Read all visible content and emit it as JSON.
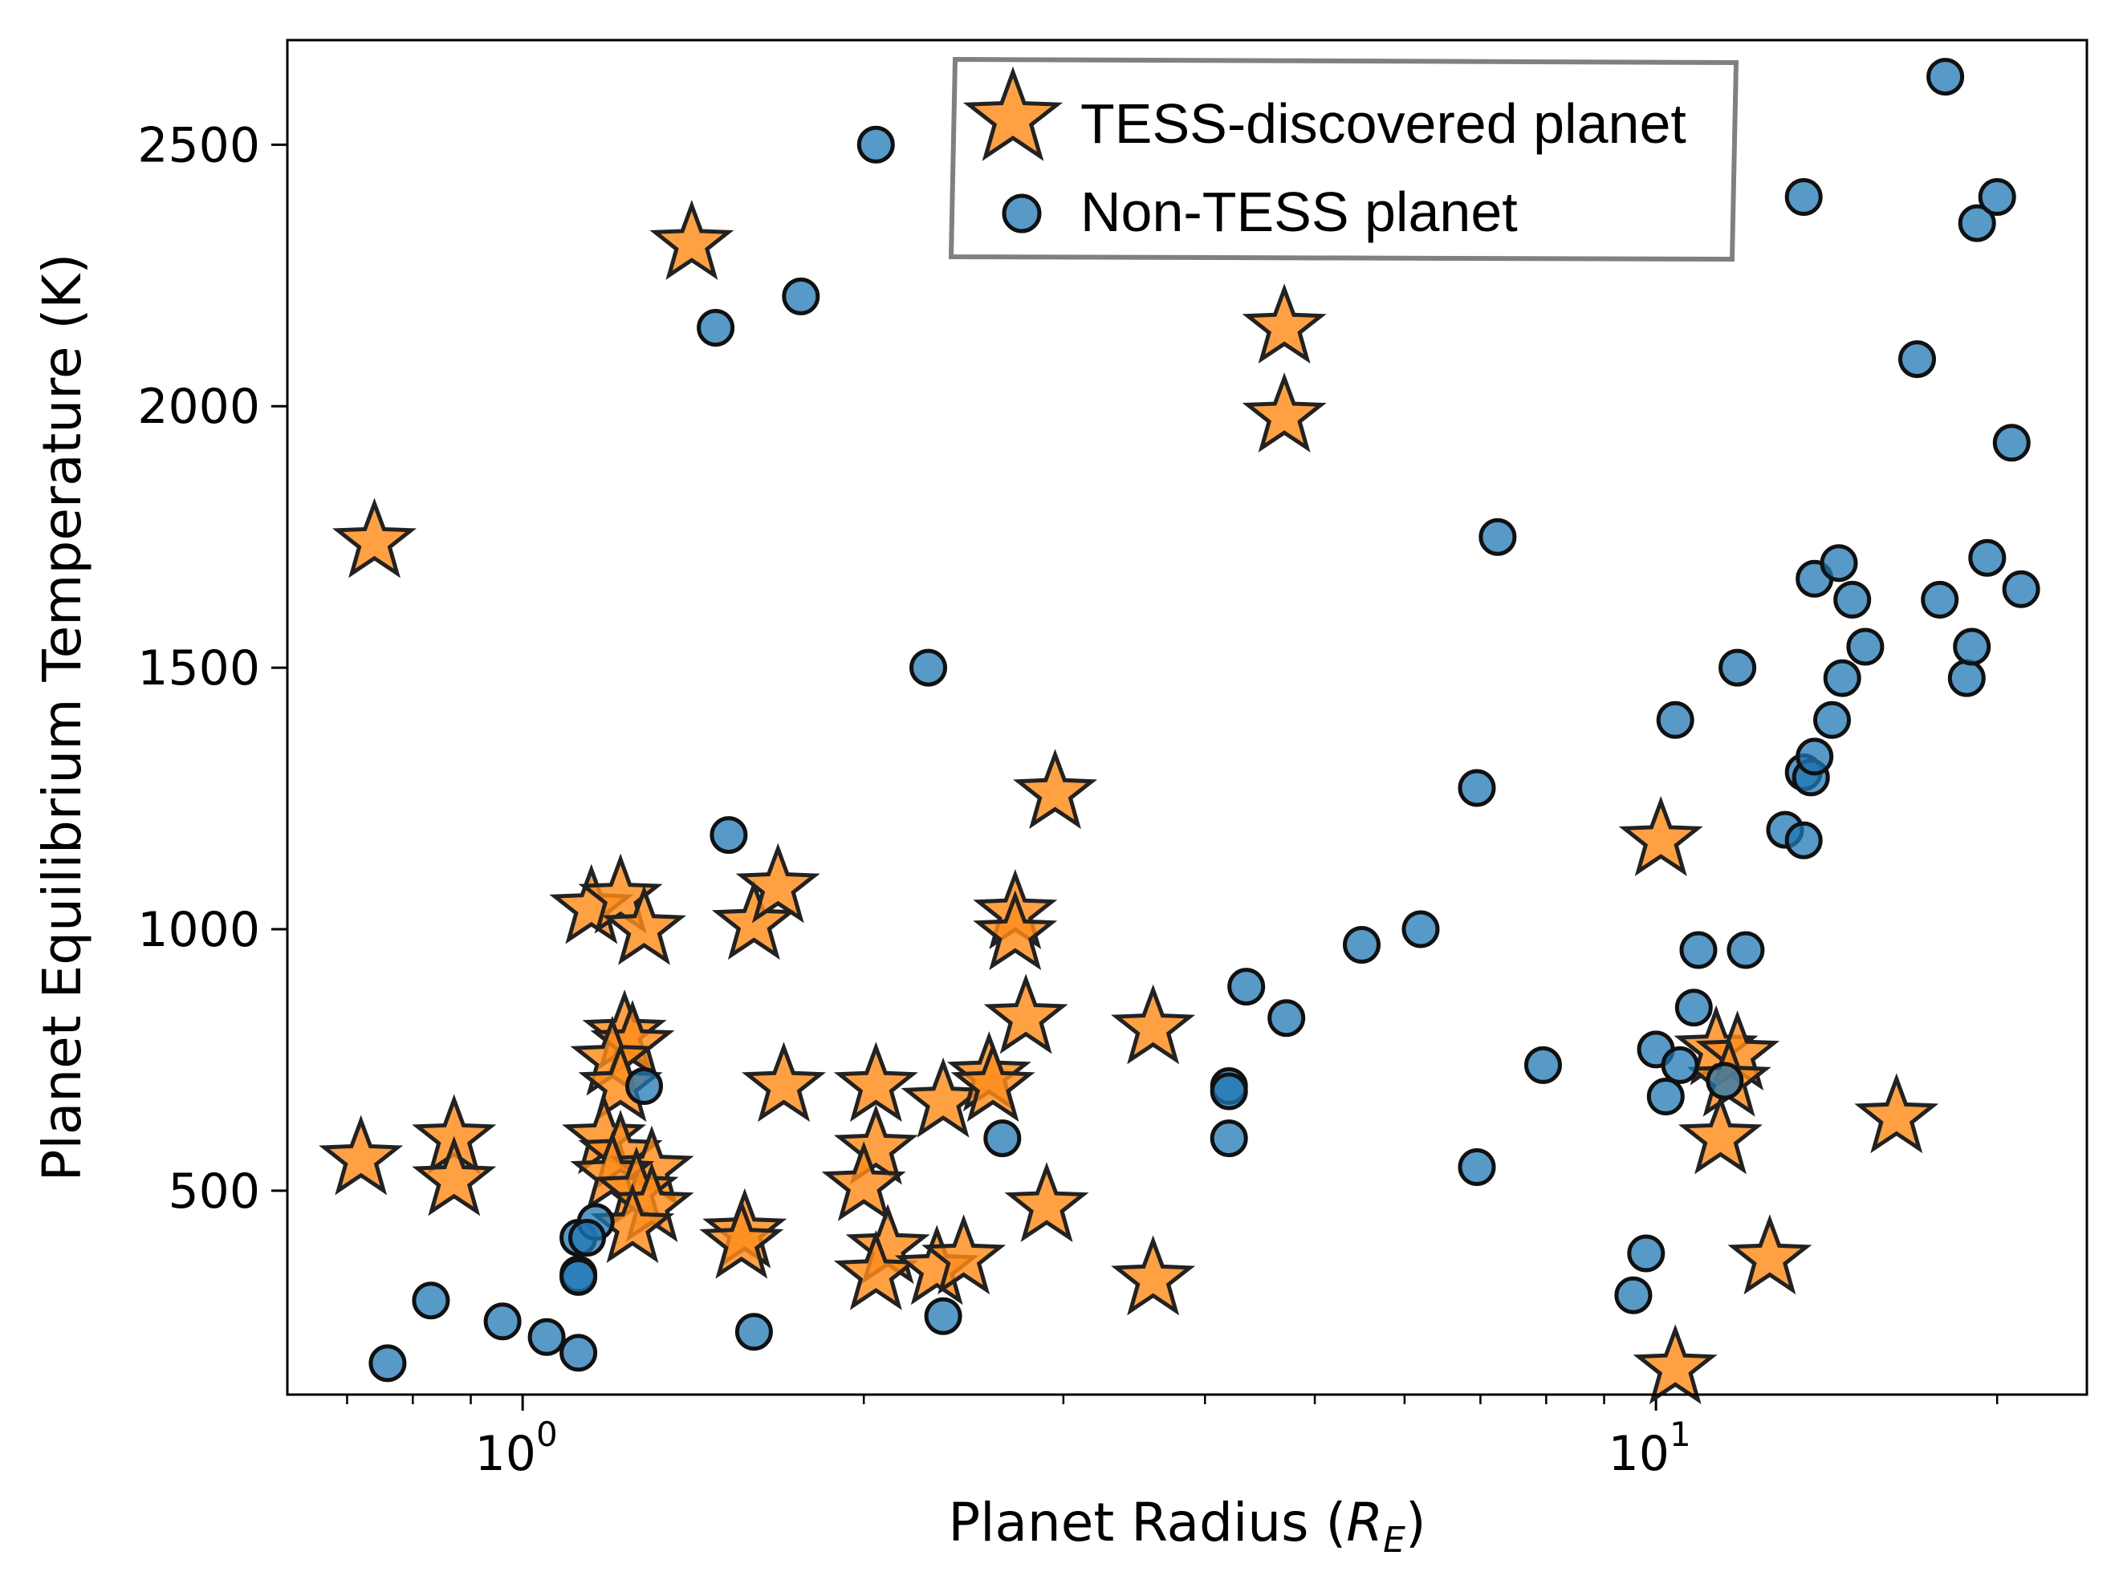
{
  "chart_data": {
    "type": "scatter",
    "xlabel": "Planet Radius (",
    "xlabel_math": "R",
    "xlabel_sub": "E",
    "xlabel_close": ")",
    "ylabel": "Planet Equilibrium Temperature (K)",
    "xscale": "log",
    "xlim": [
      0.62,
      24.0
    ],
    "ylim": [
      110,
      2700
    ],
    "x_ticks": [
      {
        "value": 1,
        "base": "10",
        "exp": "0"
      },
      {
        "value": 10,
        "base": "10",
        "exp": "1"
      }
    ],
    "y_ticks": [
      500,
      1000,
      1500,
      2000,
      2500
    ],
    "legend_position": "top-center",
    "grid": false,
    "colors": {
      "tess": "#ff8c1a",
      "non_tess": "#1f77b4"
    },
    "series": [
      {
        "name": "TESS-discovered planet",
        "marker": "star",
        "points": [
          [
            0.74,
            1740
          ],
          [
            0.72,
            560
          ],
          [
            0.87,
            600
          ],
          [
            0.87,
            520
          ],
          [
            1.41,
            2310
          ],
          [
            4.7,
            2150
          ],
          [
            4.7,
            1980
          ],
          [
            1.15,
            1040
          ],
          [
            1.22,
            1060
          ],
          [
            1.28,
            1000
          ],
          [
            1.6,
            1010
          ],
          [
            1.68,
            1080
          ],
          [
            1.23,
            800
          ],
          [
            1.25,
            780
          ],
          [
            1.2,
            750
          ],
          [
            1.22,
            700
          ],
          [
            1.18,
            600
          ],
          [
            1.22,
            570
          ],
          [
            1.3,
            540
          ],
          [
            1.2,
            530
          ],
          [
            1.26,
            500
          ],
          [
            1.3,
            470
          ],
          [
            1.25,
            430
          ],
          [
            1.57,
            420
          ],
          [
            1.56,
            400
          ],
          [
            1.7,
            700
          ],
          [
            2.05,
            700
          ],
          [
            2.05,
            580
          ],
          [
            2.0,
            510
          ],
          [
            2.1,
            390
          ],
          [
            2.05,
            340
          ],
          [
            2.35,
            670
          ],
          [
            2.58,
            720
          ],
          [
            2.6,
            700
          ],
          [
            2.32,
            350
          ],
          [
            2.45,
            370
          ],
          [
            2.72,
            1030
          ],
          [
            2.72,
            990
          ],
          [
            2.78,
            830
          ],
          [
            2.95,
            1260
          ],
          [
            2.9,
            470
          ],
          [
            3.6,
            810
          ],
          [
            3.6,
            330
          ],
          [
            10.1,
            1170
          ],
          [
            11.3,
            770
          ],
          [
            11.8,
            760
          ],
          [
            11.6,
            710
          ],
          [
            11.4,
            600
          ],
          [
            12.6,
            370
          ],
          [
            10.4,
            160
          ],
          [
            16.3,
            640
          ]
        ]
      },
      {
        "name": "Non-TESS planet",
        "marker": "circle",
        "points": [
          [
            0.76,
            170
          ],
          [
            0.83,
            290
          ],
          [
            0.96,
            250
          ],
          [
            1.05,
            220
          ],
          [
            1.12,
            190
          ],
          [
            1.12,
            410
          ],
          [
            1.16,
            440
          ],
          [
            1.14,
            410
          ],
          [
            1.12,
            340
          ],
          [
            1.12,
            335
          ],
          [
            1.28,
            700
          ],
          [
            1.48,
            2150
          ],
          [
            1.52,
            1180
          ],
          [
            1.6,
            230
          ],
          [
            1.76,
            2210
          ],
          [
            2.05,
            2500
          ],
          [
            2.28,
            1500
          ],
          [
            2.35,
            260
          ],
          [
            2.65,
            600
          ],
          [
            4.2,
            700
          ],
          [
            4.2,
            690
          ],
          [
            4.2,
            600
          ],
          [
            4.35,
            890
          ],
          [
            4.72,
            830
          ],
          [
            5.5,
            970
          ],
          [
            6.2,
            1000
          ],
          [
            6.95,
            545
          ],
          [
            6.95,
            1270
          ],
          [
            7.25,
            1750
          ],
          [
            7.95,
            740
          ],
          [
            9.55,
            300
          ],
          [
            9.8,
            380
          ],
          [
            10.0,
            770
          ],
          [
            10.2,
            680
          ],
          [
            10.5,
            740
          ],
          [
            10.4,
            1400
          ],
          [
            10.8,
            850
          ],
          [
            10.9,
            960
          ],
          [
            11.5,
            710
          ],
          [
            11.8,
            1500
          ],
          [
            12.0,
            960
          ],
          [
            13.0,
            1190
          ],
          [
            13.5,
            2400
          ],
          [
            13.5,
            1170
          ],
          [
            13.5,
            1300
          ],
          [
            13.7,
            1290
          ],
          [
            13.8,
            1330
          ],
          [
            13.8,
            1670
          ],
          [
            14.3,
            1400
          ],
          [
            14.5,
            1700
          ],
          [
            14.6,
            1480
          ],
          [
            14.9,
            1630
          ],
          [
            15.3,
            1540
          ],
          [
            17.0,
            2090
          ],
          [
            17.8,
            1630
          ],
          [
            18.0,
            2630
          ],
          [
            18.8,
            1480
          ],
          [
            19.0,
            1540
          ],
          [
            19.2,
            2350
          ],
          [
            19.6,
            1710
          ],
          [
            20.0,
            2400
          ],
          [
            20.6,
            1930
          ],
          [
            21.0,
            1650
          ]
        ]
      }
    ]
  }
}
